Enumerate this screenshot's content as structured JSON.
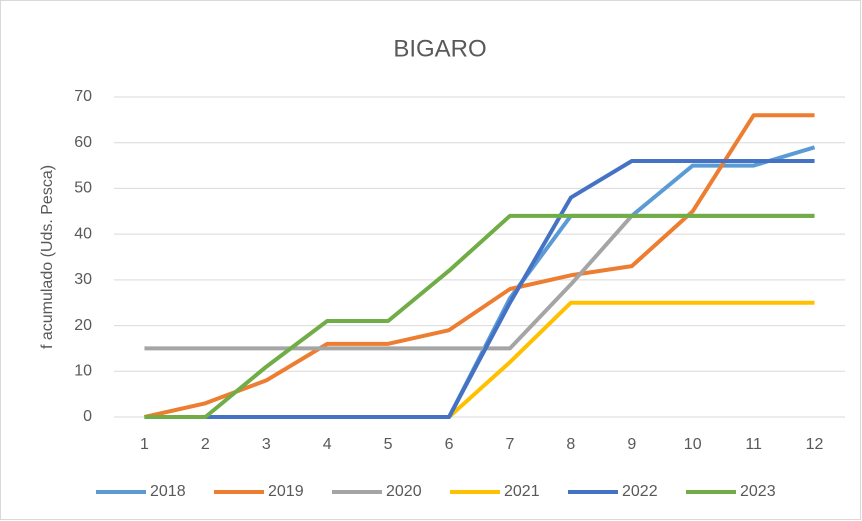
{
  "chart_data": {
    "type": "line",
    "title": "BIGARO",
    "y_label": "f acumulado (Uds. Pesca)",
    "categories": [
      "1",
      "2",
      "3",
      "4",
      "5",
      "6",
      "7",
      "8",
      "9",
      "10",
      "11",
      "12"
    ],
    "ylim": [
      0,
      70
    ],
    "yticks": [
      0,
      10,
      20,
      30,
      40,
      50,
      60,
      70
    ],
    "grid": true,
    "legend": "bottom",
    "series": [
      {
        "name": "2018",
        "color": "#5b9bd5",
        "values": [
          0,
          0,
          0,
          0,
          0,
          0,
          26,
          44,
          44,
          55,
          55,
          59
        ]
      },
      {
        "name": "2019",
        "color": "#ed7d31",
        "values": [
          0,
          3,
          8,
          16,
          16,
          19,
          28,
          31,
          33,
          45,
          66,
          66
        ]
      },
      {
        "name": "2020",
        "color": "#a5a5a5",
        "values": [
          15,
          15,
          15,
          15,
          15,
          15,
          15,
          29,
          44,
          44,
          44,
          44
        ]
      },
      {
        "name": "2021",
        "color": "#ffc000",
        "values": [
          0,
          0,
          0,
          0,
          0,
          0,
          12,
          25,
          25,
          25,
          25,
          25
        ]
      },
      {
        "name": "2022",
        "color": "#4472c4",
        "values": [
          0,
          0,
          0,
          0,
          0,
          0,
          25,
          48,
          56,
          56,
          56,
          56
        ]
      },
      {
        "name": "2023",
        "color": "#70ad47",
        "values": [
          0,
          0,
          11,
          21,
          21,
          32,
          44,
          44,
          44,
          44,
          44,
          44
        ]
      }
    ]
  }
}
